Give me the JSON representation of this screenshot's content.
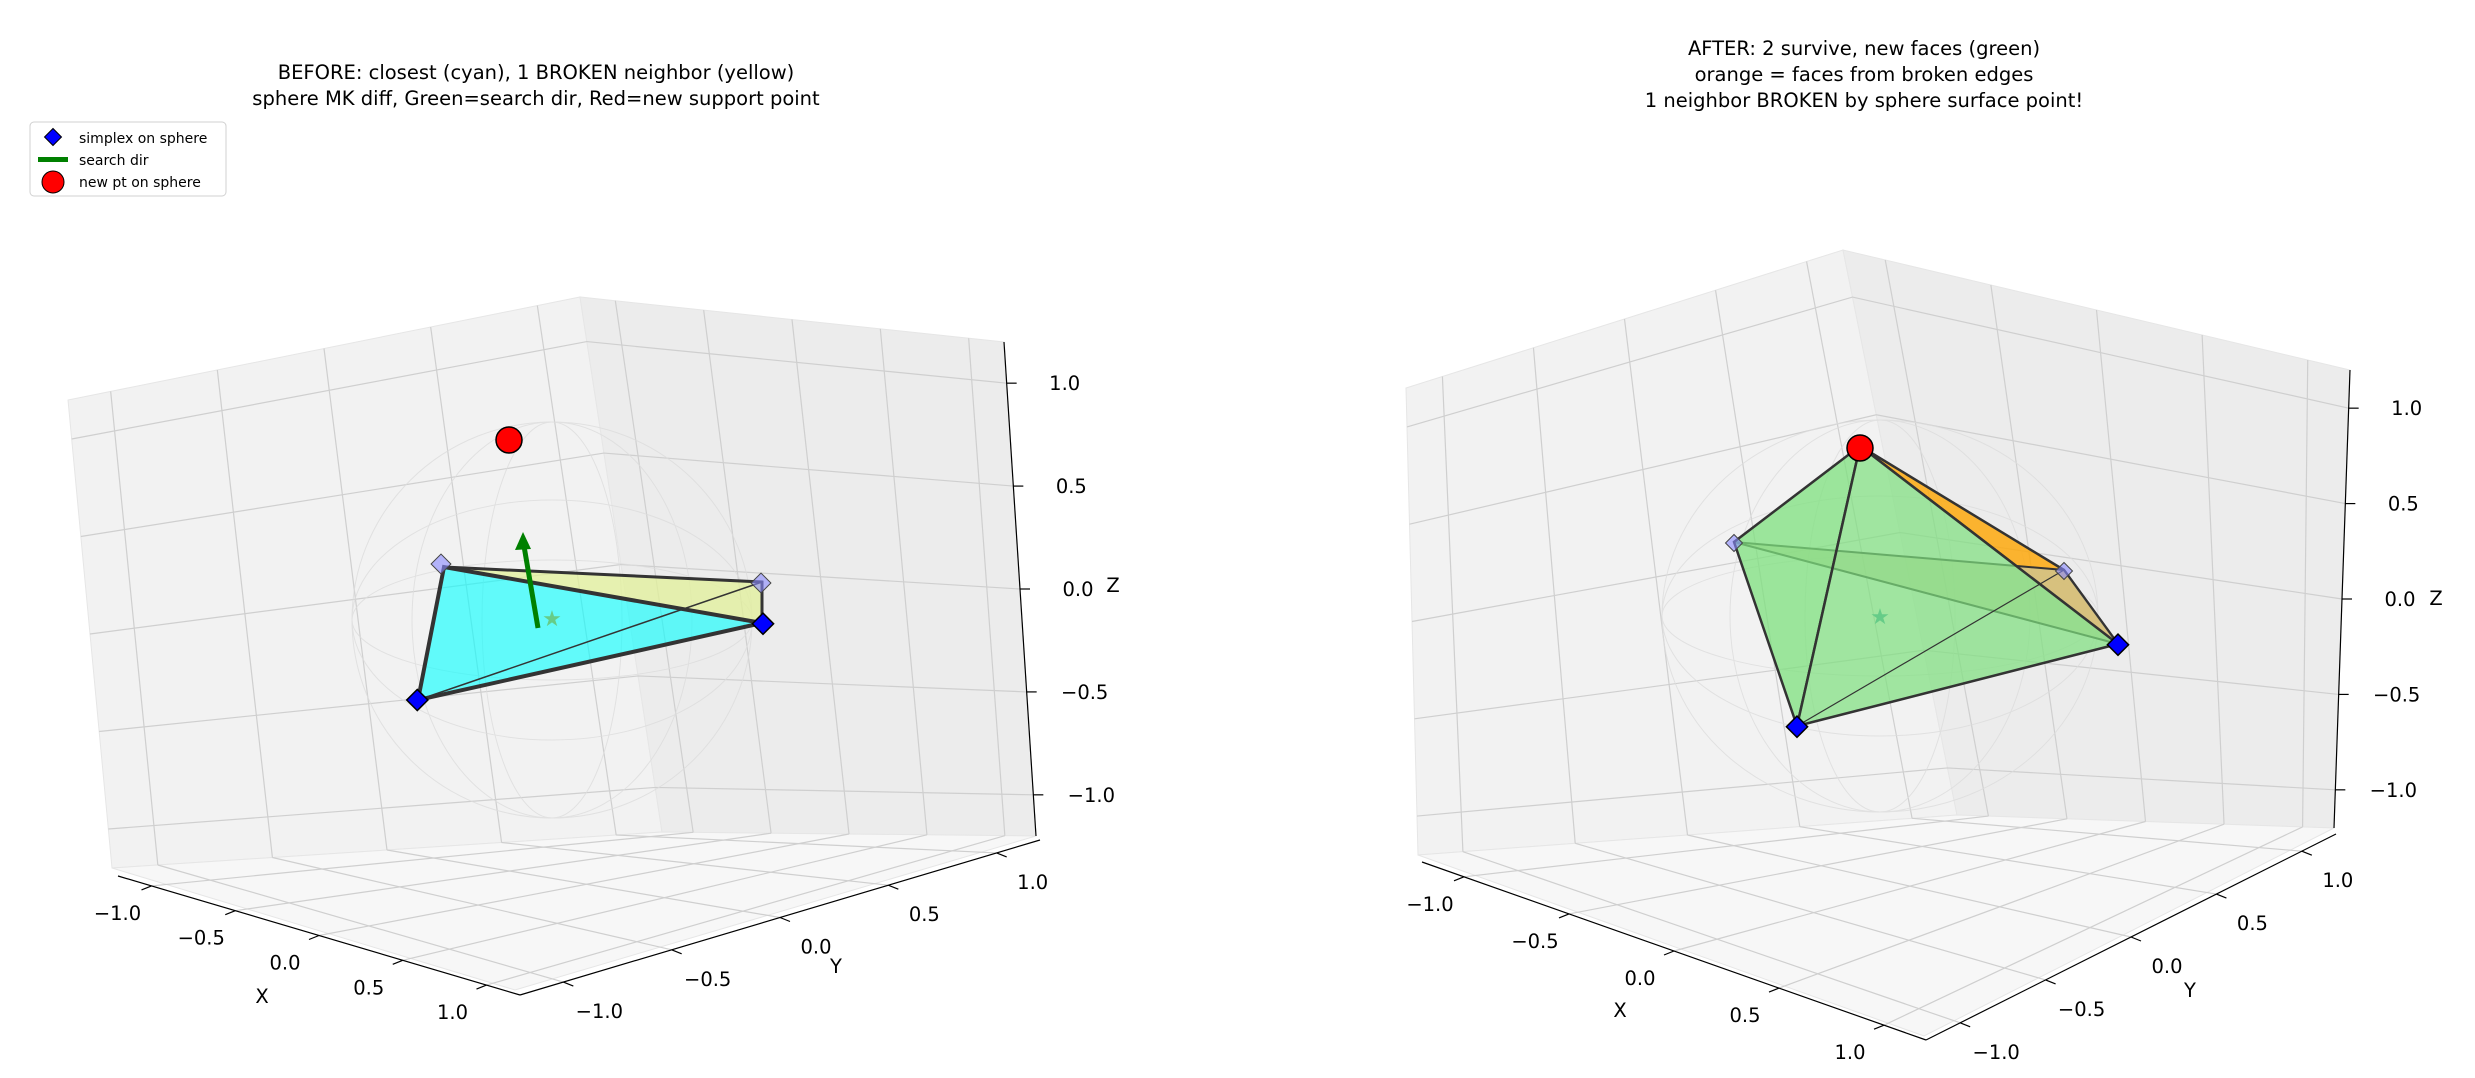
{
  "chart_data": [
    {
      "type": "scatter3d",
      "title_lines": [
        "BEFORE: closest (cyan), 1 BROKEN neighbor (yellow)",
        "sphere MK diff, Green=search dir, Red=new support point"
      ],
      "xlabel": "X",
      "ylabel": "Y",
      "zlabel": "Z",
      "xticks": [
        "−1.0",
        "−0.5",
        "0.0",
        "0.5",
        "1.0"
      ],
      "yticks": [
        "−1.0",
        "−0.5",
        "0.0",
        "0.5",
        "1.0"
      ],
      "zticks": [
        "−1.0",
        "−0.5",
        "0.0",
        "0.5",
        "1.0"
      ],
      "xlim": [
        -1.2,
        1.2
      ],
      "ylim": [
        -1.2,
        1.2
      ],
      "zlim": [
        -1.2,
        1.2
      ],
      "grid": true,
      "legend": {
        "placement": "upper-left",
        "entries": [
          "simplex on sphere",
          "search dir",
          "new pt on sphere"
        ]
      },
      "simplex_points": [
        "A",
        "B",
        "C",
        "D"
      ],
      "new_point": "red support point on sphere",
      "faces": [
        {
          "name": "closest face",
          "color": "#00ffff"
        },
        {
          "name": "broken neighbor face",
          "color": "#ffff00"
        }
      ],
      "marker": "star at origin"
    },
    {
      "type": "scatter3d",
      "title_lines": [
        "AFTER: 2 survive, new faces (green)",
        "orange = faces from broken edges",
        "1 neighbor BROKEN by sphere surface point!"
      ],
      "xlabel": "X",
      "ylabel": "Y",
      "zlabel": "Z",
      "xticks": [
        "−1.0",
        "−0.5",
        "0.0",
        "0.5",
        "1.0"
      ],
      "yticks": [
        "−1.0",
        "−0.5",
        "0.0",
        "0.5",
        "1.0"
      ],
      "zticks": [
        "−1.0",
        "−0.5",
        "0.0",
        "0.5",
        "1.0"
      ],
      "xlim": [
        -1.2,
        1.2
      ],
      "ylim": [
        -1.2,
        1.2
      ],
      "zlim": [
        -1.2,
        1.2
      ],
      "grid": true,
      "faces": [
        {
          "name": "new faces",
          "color": "#7ee07e"
        },
        {
          "name": "faces from broken edges",
          "color": "#ffa500"
        },
        {
          "name": "surviving face",
          "color": "#c8c8a0"
        }
      ],
      "marker": "star at origin"
    }
  ],
  "colors": {
    "simplex_marker": "#0000ff",
    "search_dir": "#008000",
    "new_point": "#ff0000",
    "cyan_face": "#00ffff",
    "yellow_face": "#e6f28a",
    "green_face": "#7ee07e",
    "orange_face": "#ffa500"
  }
}
